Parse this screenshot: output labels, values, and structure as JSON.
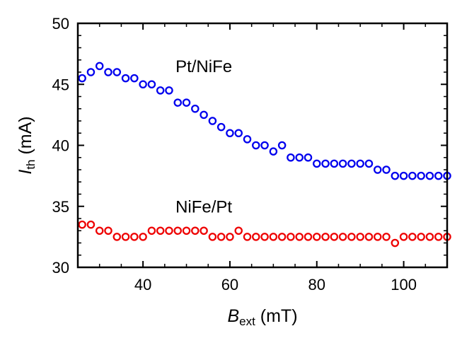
{
  "chart_data": {
    "type": "scatter",
    "marker": "open-circle",
    "grid": false,
    "xlim": [
      25,
      110
    ],
    "ylim": [
      30,
      50
    ],
    "xticks": [
      40,
      60,
      80,
      100
    ],
    "yticks": [
      30,
      35,
      40,
      45,
      50
    ],
    "x_minor_step": 5,
    "y_minor_step": 1,
    "xlabel": {
      "symbol": "B",
      "subscript": "ext",
      "unit": "(mT)"
    },
    "ylabel": {
      "symbol": "I",
      "subscript": "th",
      "unit": "(mA)"
    },
    "series": [
      {
        "name": "Pt/NiFe",
        "color": "#0000ee",
        "x": [
          26,
          28,
          30,
          32,
          34,
          36,
          38,
          40,
          42,
          44,
          46,
          48,
          50,
          52,
          54,
          56,
          58,
          60,
          62,
          64,
          66,
          68,
          70,
          72,
          74,
          76,
          78,
          80,
          82,
          84,
          86,
          88,
          90,
          92,
          94,
          96,
          98,
          100,
          102,
          104,
          106,
          108,
          110
        ],
        "y": [
          45.5,
          46.0,
          46.5,
          46.0,
          46.0,
          45.5,
          45.5,
          45.0,
          45.0,
          44.5,
          44.5,
          43.5,
          43.5,
          43.0,
          42.5,
          42.0,
          41.5,
          41.0,
          41.0,
          40.5,
          40.0,
          40.0,
          39.5,
          40.0,
          39.0,
          39.0,
          39.0,
          38.5,
          38.5,
          38.5,
          38.5,
          38.5,
          38.5,
          38.5,
          38.0,
          38.0,
          37.5,
          37.5,
          37.5,
          37.5,
          37.5,
          37.5,
          37.5
        ]
      },
      {
        "name": "NiFe/Pt",
        "color": "#ee0000",
        "x": [
          26,
          28,
          30,
          32,
          34,
          36,
          38,
          40,
          42,
          44,
          46,
          48,
          50,
          52,
          54,
          56,
          58,
          60,
          62,
          64,
          66,
          68,
          70,
          72,
          74,
          76,
          78,
          80,
          82,
          84,
          86,
          88,
          90,
          92,
          94,
          96,
          98,
          100,
          102,
          104,
          106,
          108,
          110
        ],
        "y": [
          33.5,
          33.5,
          33.0,
          33.0,
          32.5,
          32.5,
          32.5,
          32.5,
          33.0,
          33.0,
          33.0,
          33.0,
          33.0,
          33.0,
          33.0,
          32.5,
          32.5,
          32.5,
          33.0,
          32.5,
          32.5,
          32.5,
          32.5,
          32.5,
          32.5,
          32.5,
          32.5,
          32.5,
          32.5,
          32.5,
          32.5,
          32.5,
          32.5,
          32.5,
          32.5,
          32.5,
          32.0,
          32.5,
          32.5,
          32.5,
          32.5,
          32.5,
          32.5
        ]
      }
    ],
    "annotations": [
      {
        "text": "Pt/NiFe",
        "x": 54,
        "y": 46.0
      },
      {
        "text": "NiFe/Pt",
        "x": 54,
        "y": 34.5
      }
    ]
  }
}
